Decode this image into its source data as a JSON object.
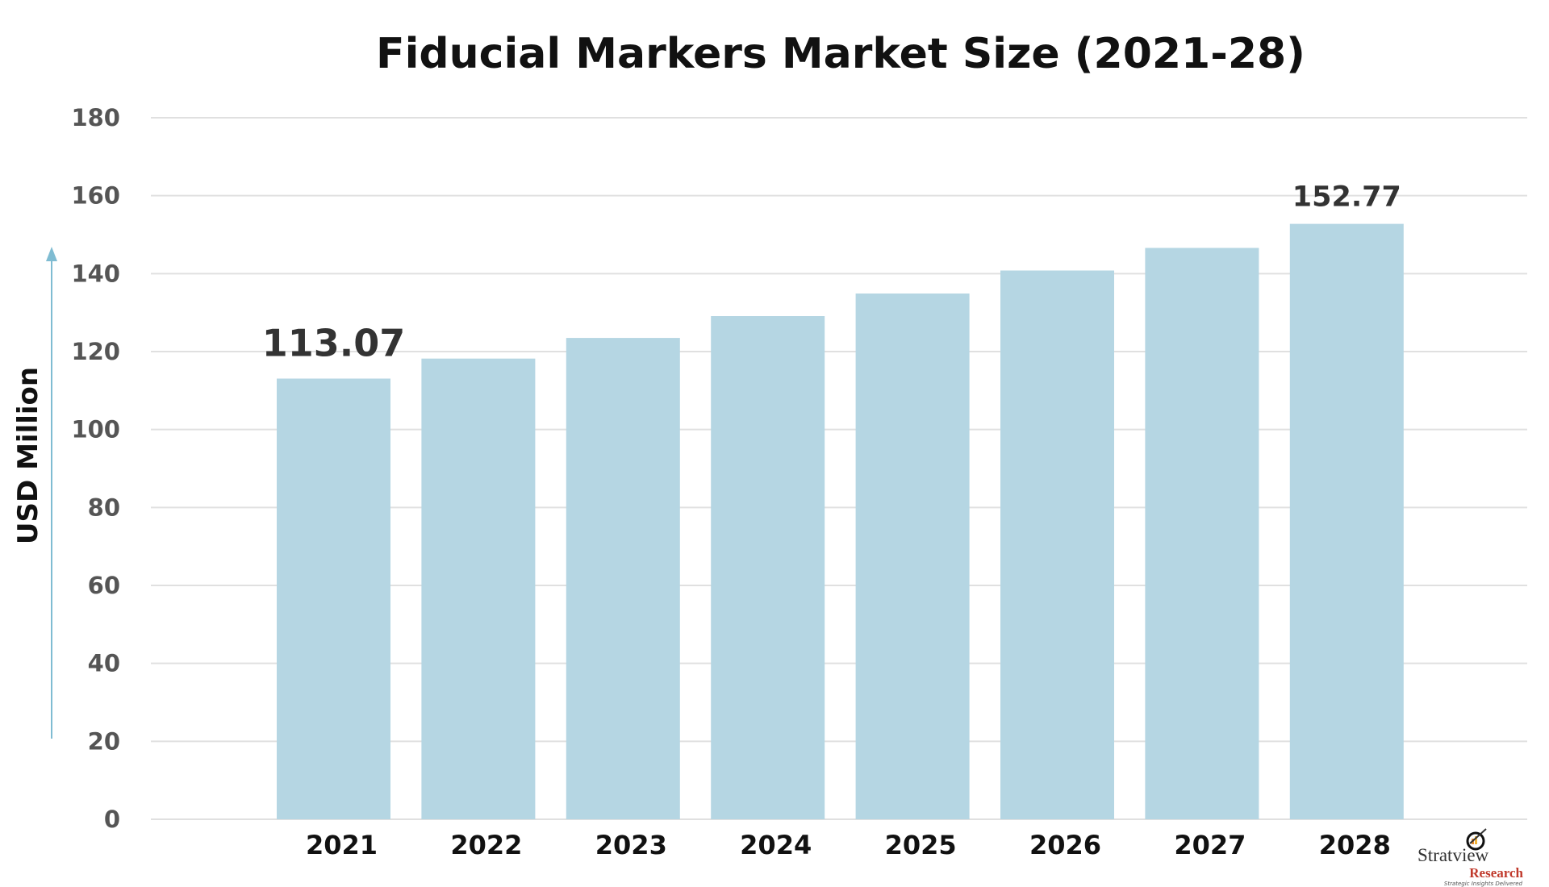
{
  "chart_data": {
    "type": "bar",
    "title": "Fiducial Markers Market Size (2021-28)",
    "xlabel": "",
    "ylabel": "USD Million",
    "ylim": [
      0,
      180
    ],
    "yticks": [
      0,
      20,
      40,
      60,
      80,
      100,
      120,
      140,
      160,
      180
    ],
    "grid": true,
    "categories": [
      "2021",
      "2022",
      "2023",
      "2024",
      "2025",
      "2026",
      "2027",
      "2028"
    ],
    "values": [
      113.07,
      118.2,
      123.5,
      129.1,
      134.9,
      140.8,
      146.6,
      152.77
    ],
    "data_labels": [
      {
        "category": "2021",
        "text": "113.07"
      },
      {
        "category": "2028",
        "text": "152.77"
      }
    ],
    "colors": {
      "bar": "#b5d6e3",
      "grid": "#e0e0e0",
      "arrow": "#7fbcd2"
    }
  },
  "logo": {
    "name": "Stratview",
    "sub": "Research",
    "tagline": "Strategic Insights Delivered"
  }
}
